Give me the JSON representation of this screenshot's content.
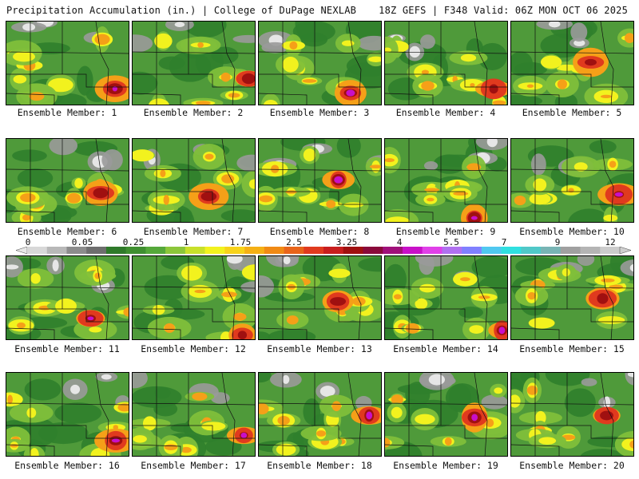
{
  "header": {
    "left_title": "Precipitation Accumulation (in.) | College of DuPage NEXLAB",
    "right_title": "18Z GEFS | F348 Valid: 06Z MON OCT 06 2025"
  },
  "colorbar": {
    "ticks": [
      "0",
      "0.05",
      "0.25",
      "1",
      "1.75",
      "2.5",
      "3.25",
      "4",
      "5.5",
      "7",
      "9",
      "12"
    ],
    "colors": [
      "#d8d8d8",
      "#b8b8b8",
      "#8c8c8c",
      "#6e6e6e",
      "#2f7a2a",
      "#3f8f30",
      "#55a83a",
      "#8cc63a",
      "#c8e02a",
      "#f2f21e",
      "#f7d21a",
      "#f5b015",
      "#f08a14",
      "#e8641a",
      "#e03a1e",
      "#c81e1e",
      "#a01010",
      "#8a0a3a",
      "#a0107a",
      "#c810c8",
      "#e040e8",
      "#b070f0",
      "#8080ff",
      "#50c8f0",
      "#30e0e0",
      "#50c8c8",
      "#78b4b4",
      "#a0a0a0",
      "#b4b4b4",
      "#cccccc"
    ]
  },
  "map_colors": {
    "green_dark": "#2f7f2c",
    "green": "#4f9a3a",
    "green_light": "#7fbf3a",
    "yellow": "#f2f21e",
    "orange": "#f5a018",
    "red": "#e03a1e",
    "darkred": "#a01010",
    "magenta": "#c810c8",
    "grey": "#9a9a9a",
    "white": "#e6e6e6"
  },
  "members": [
    {
      "label": "Ensemble Member: 1"
    },
    {
      "label": "Ensemble Member: 2"
    },
    {
      "label": "Ensemble Member: 3"
    },
    {
      "label": "Ensemble Member: 4"
    },
    {
      "label": "Ensemble Member: 5"
    },
    {
      "label": "Ensemble Member: 6"
    },
    {
      "label": "Ensemble Member: 7"
    },
    {
      "label": "Ensemble Member: 8"
    },
    {
      "label": "Ensemble Member: 9"
    },
    {
      "label": "Ensemble Member: 10"
    },
    {
      "label": "Ensemble Member: 11"
    },
    {
      "label": "Ensemble Member: 12"
    },
    {
      "label": "Ensemble Member: 13"
    },
    {
      "label": "Ensemble Member: 14"
    },
    {
      "label": "Ensemble Member: 15"
    },
    {
      "label": "Ensemble Member: 16"
    },
    {
      "label": "Ensemble Member: 17"
    },
    {
      "label": "Ensemble Member: 18"
    },
    {
      "label": "Ensemble Member: 19"
    },
    {
      "label": "Ensemble Member: 20"
    }
  ]
}
